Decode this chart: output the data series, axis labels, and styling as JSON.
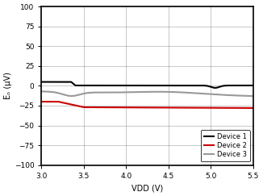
{
  "title": "",
  "xlabel": "VDD (V)",
  "ylabel": "Eₒ (µV)",
  "xlim": [
    3,
    5.5
  ],
  "ylim": [
    -100,
    100
  ],
  "xticks": [
    3,
    3.5,
    4,
    4.5,
    5,
    5.5
  ],
  "yticks": [
    -100,
    -75,
    -50,
    -25,
    0,
    25,
    50,
    75,
    100
  ],
  "device1_color": "#000000",
  "device2_color": "#cc0000",
  "device3_color": "#999999",
  "device1_label": "Device 1",
  "device2_label": "Device 2",
  "device3_label": "Device 3",
  "linewidth": 1.5,
  "background_color": "#ffffff",
  "grid_color": "#000000",
  "grid_alpha": 0.25,
  "grid_linewidth": 0.6
}
